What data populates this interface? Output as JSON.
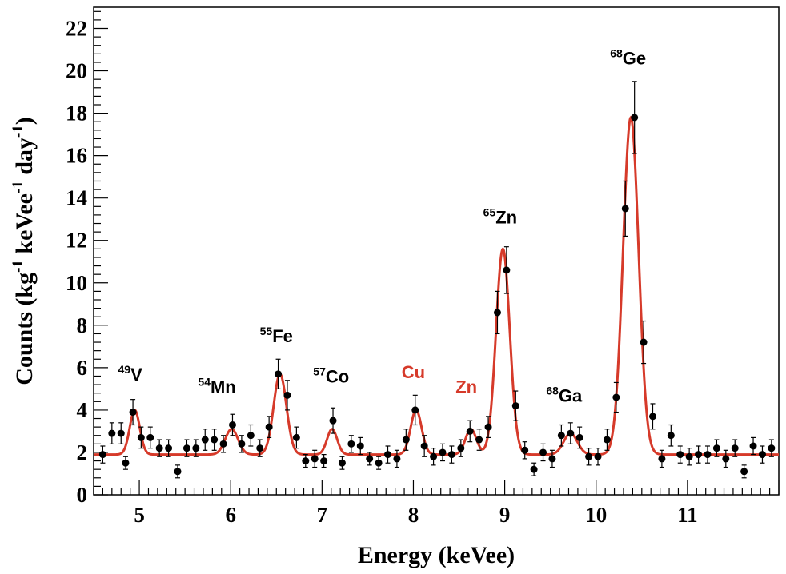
{
  "chart_data": {
    "type": "scatter",
    "xlabel": "Energy (keVee)",
    "ylabel": "Counts (kg",
    "ylabel_parts": {
      "main": "Counts (kg",
      "sup1": "-1",
      "mid": " keVee",
      "sup2": "-1",
      "tail": " day",
      "sup3": "-1",
      "end": ")"
    },
    "xlim": [
      4.5,
      12.0
    ],
    "ylim": [
      0,
      23
    ],
    "x_ticks": [
      5,
      6,
      7,
      8,
      9,
      10,
      11
    ],
    "x_tick_labels": [
      "5",
      "6",
      "7",
      "8",
      "9",
      "10",
      "11"
    ],
    "y_ticks": [
      0,
      2,
      4,
      6,
      8,
      10,
      12,
      14,
      16,
      18,
      20,
      22
    ],
    "y_tick_labels": [
      "0",
      "2",
      "4",
      "6",
      "8",
      "10",
      "12",
      "14",
      "16",
      "18",
      "20",
      "22"
    ],
    "colors": {
      "fit": "#d63a2a",
      "points": "#000000",
      "label_red": "#d63a2a",
      "label_black": "#000000"
    },
    "series": [
      {
        "name": "data",
        "points": [
          [
            4.6,
            1.9,
            0.4
          ],
          [
            4.7,
            2.9,
            0.5
          ],
          [
            4.8,
            2.9,
            0.5
          ],
          [
            4.85,
            1.5,
            0.3
          ],
          [
            4.93,
            3.9,
            0.6
          ],
          [
            5.02,
            2.7,
            0.5
          ],
          [
            5.12,
            2.7,
            0.5
          ],
          [
            5.22,
            2.2,
            0.4
          ],
          [
            5.32,
            2.2,
            0.4
          ],
          [
            5.42,
            1.1,
            0.3
          ],
          [
            5.52,
            2.2,
            0.4
          ],
          [
            5.62,
            2.2,
            0.4
          ],
          [
            5.72,
            2.6,
            0.5
          ],
          [
            5.82,
            2.6,
            0.5
          ],
          [
            5.92,
            2.4,
            0.4
          ],
          [
            6.02,
            3.3,
            0.5
          ],
          [
            6.12,
            2.4,
            0.4
          ],
          [
            6.22,
            2.8,
            0.5
          ],
          [
            6.32,
            2.2,
            0.4
          ],
          [
            6.42,
            3.2,
            0.5
          ],
          [
            6.52,
            5.7,
            0.7
          ],
          [
            6.62,
            4.7,
            0.7
          ],
          [
            6.72,
            2.7,
            0.5
          ],
          [
            6.82,
            1.6,
            0.3
          ],
          [
            6.92,
            1.7,
            0.4
          ],
          [
            7.02,
            1.6,
            0.3
          ],
          [
            7.12,
            3.5,
            0.6
          ],
          [
            7.22,
            1.5,
            0.3
          ],
          [
            7.32,
            2.4,
            0.4
          ],
          [
            7.42,
            2.3,
            0.4
          ],
          [
            7.52,
            1.7,
            0.3
          ],
          [
            7.62,
            1.5,
            0.3
          ],
          [
            7.72,
            1.9,
            0.4
          ],
          [
            7.82,
            1.7,
            0.4
          ],
          [
            7.92,
            2.6,
            0.5
          ],
          [
            8.02,
            4.0,
            0.7
          ],
          [
            8.12,
            2.3,
            0.5
          ],
          [
            8.22,
            1.8,
            0.4
          ],
          [
            8.32,
            2.0,
            0.4
          ],
          [
            8.42,
            1.9,
            0.4
          ],
          [
            8.52,
            2.2,
            0.4
          ],
          [
            8.62,
            3.0,
            0.5
          ],
          [
            8.72,
            2.6,
            0.5
          ],
          [
            8.82,
            3.2,
            0.5
          ],
          [
            8.92,
            8.6,
            1.0
          ],
          [
            9.02,
            10.6,
            1.1
          ],
          [
            9.12,
            4.2,
            0.7
          ],
          [
            9.22,
            2.1,
            0.4
          ],
          [
            9.32,
            1.2,
            0.3
          ],
          [
            9.42,
            2.0,
            0.4
          ],
          [
            9.52,
            1.7,
            0.4
          ],
          [
            9.62,
            2.8,
            0.5
          ],
          [
            9.72,
            2.9,
            0.5
          ],
          [
            9.82,
            2.7,
            0.5
          ],
          [
            9.92,
            1.8,
            0.4
          ],
          [
            10.02,
            1.8,
            0.4
          ],
          [
            10.12,
            2.6,
            0.5
          ],
          [
            10.22,
            4.6,
            0.7
          ],
          [
            10.32,
            13.5,
            1.3
          ],
          [
            10.42,
            17.8,
            1.7
          ],
          [
            10.52,
            7.2,
            1.0
          ],
          [
            10.62,
            3.7,
            0.6
          ],
          [
            10.72,
            1.7,
            0.4
          ],
          [
            10.82,
            2.8,
            0.5
          ],
          [
            10.92,
            1.9,
            0.4
          ],
          [
            11.02,
            1.8,
            0.4
          ],
          [
            11.12,
            1.9,
            0.4
          ],
          [
            11.22,
            1.9,
            0.4
          ],
          [
            11.32,
            2.2,
            0.4
          ],
          [
            11.42,
            1.7,
            0.4
          ],
          [
            11.52,
            2.2,
            0.4
          ],
          [
            11.62,
            1.1,
            0.3
          ],
          [
            11.72,
            2.3,
            0.4
          ],
          [
            11.82,
            1.9,
            0.4
          ],
          [
            11.92,
            2.2,
            0.4
          ]
        ]
      },
      {
        "name": "fit",
        "baseline": 1.9,
        "peaks": [
          {
            "mu": 4.95,
            "amp": 2.1,
            "sigma": 0.055
          },
          {
            "mu": 6.01,
            "amp": 1.2,
            "sigma": 0.07
          },
          {
            "mu": 6.54,
            "amp": 3.8,
            "sigma": 0.07
          },
          {
            "mu": 7.11,
            "amp": 1.2,
            "sigma": 0.055
          },
          {
            "mu": 8.03,
            "amp": 2.1,
            "sigma": 0.06
          },
          {
            "mu": 8.63,
            "amp": 1.2,
            "sigma": 0.06
          },
          {
            "mu": 8.98,
            "amp": 9.7,
            "sigma": 0.075
          },
          {
            "mu": 9.72,
            "amp": 1.0,
            "sigma": 0.075
          },
          {
            "mu": 10.38,
            "amp": 15.9,
            "sigma": 0.085
          }
        ]
      }
    ],
    "annotations": [
      {
        "id": "v49",
        "sup": "49",
        "text": "V",
        "x": 4.9,
        "y": 5.4,
        "color": "black"
      },
      {
        "id": "mn54",
        "sup": "54",
        "text": "Mn",
        "x": 5.85,
        "y": 4.8,
        "color": "black"
      },
      {
        "id": "fe55",
        "sup": "55",
        "text": "Fe",
        "x": 6.5,
        "y": 7.2,
        "color": "black"
      },
      {
        "id": "co57",
        "sup": "57",
        "text": "Co",
        "x": 7.1,
        "y": 5.3,
        "color": "black"
      },
      {
        "id": "cu",
        "sup": "",
        "text": "Cu",
        "x": 8.0,
        "y": 5.5,
        "color": "red"
      },
      {
        "id": "zn",
        "sup": "",
        "text": "Zn",
        "x": 8.58,
        "y": 4.8,
        "color": "red"
      },
      {
        "id": "zn65",
        "sup": "65",
        "text": "Zn",
        "x": 8.95,
        "y": 12.8,
        "color": "black"
      },
      {
        "id": "ga68",
        "sup": "68",
        "text": "Ga",
        "x": 9.65,
        "y": 4.4,
        "color": "black"
      },
      {
        "id": "ge68",
        "sup": "68",
        "text": "Ge",
        "x": 10.35,
        "y": 20.3,
        "color": "black"
      }
    ]
  }
}
